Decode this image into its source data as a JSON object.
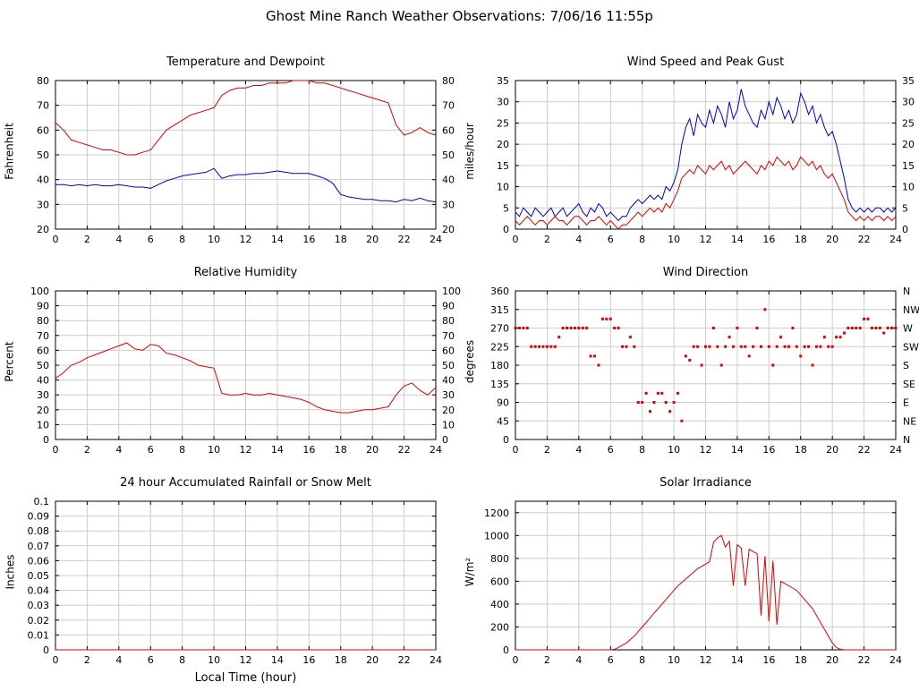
{
  "page_title": "Ghost Mine Ranch Weather Observations: 7/06/16 11:55p",
  "colors": {
    "red": "#dd0000",
    "blue": "#0000cc",
    "grid": "#cccccc",
    "axis": "#000000"
  },
  "chart_data": [
    {
      "type": "line",
      "title": "Temperature and Dewpoint",
      "ylabel": "Fahrenheit",
      "ylim": [
        20,
        80
      ],
      "ytick": 10,
      "right_ticks": true,
      "xlim": [
        0,
        24
      ],
      "xtick": 2,
      "series": [
        {
          "name": "Temperature",
          "color": "red",
          "type": "line",
          "x0": 0,
          "dx": 0.5,
          "y": [
            63,
            60,
            56,
            55,
            54,
            53,
            52,
            52,
            51,
            50,
            50,
            51,
            52,
            56,
            60,
            62,
            64,
            66,
            67,
            68,
            69,
            74,
            76,
            77,
            77,
            78,
            78,
            79,
            79,
            79,
            80,
            80,
            80,
            79,
            79,
            78,
            77,
            76,
            75,
            74,
            73,
            72,
            71,
            62,
            58,
            59,
            61,
            59,
            58
          ]
        },
        {
          "name": "Dewpoint",
          "color": "blue",
          "type": "line",
          "x0": 0,
          "dx": 0.5,
          "y": [
            38,
            38,
            37.5,
            38,
            37.5,
            38,
            37.5,
            37.5,
            38,
            37.5,
            37,
            37,
            36.5,
            38,
            39.5,
            40.5,
            41.5,
            42,
            42.5,
            43,
            44.5,
            40.5,
            41.5,
            42,
            42,
            42.5,
            42.5,
            43,
            43.5,
            43,
            42.5,
            42.5,
            42.5,
            41.5,
            40.5,
            38.5,
            34,
            33,
            32.5,
            32,
            32,
            31.5,
            31.5,
            31,
            32,
            31.5,
            32.5,
            31.5,
            31
          ]
        }
      ]
    },
    {
      "type": "line",
      "title": "Wind Speed and Peak Gust",
      "ylabel": "miles/hour",
      "ylim": [
        0,
        35
      ],
      "ytick": 5,
      "right_ticks": true,
      "xlim": [
        0,
        24
      ],
      "xtick": 2,
      "series": [
        {
          "name": "Peak Gust",
          "color": "blue",
          "type": "line",
          "x0": 0,
          "dx": 0.25,
          "y": [
            4,
            3,
            5,
            4,
            3,
            5,
            4,
            3,
            4,
            5,
            3,
            4,
            5,
            3,
            4,
            5,
            6,
            4,
            3,
            5,
            4,
            6,
            5,
            3,
            4,
            3,
            2,
            3,
            3,
            5,
            6,
            7,
            6,
            7,
            8,
            7,
            8,
            7,
            10,
            9,
            11,
            14,
            20,
            24,
            26,
            22,
            27,
            25,
            24,
            28,
            25,
            29,
            27,
            24,
            30,
            26,
            28,
            33,
            29,
            27,
            25,
            24,
            28,
            26,
            30,
            27,
            31,
            29,
            26,
            28,
            25,
            27,
            32,
            30,
            27,
            29,
            25,
            27,
            24,
            22,
            23,
            20,
            16,
            12,
            7,
            5,
            4,
            5,
            4,
            5,
            4,
            5,
            5,
            4,
            5,
            4,
            5
          ]
        },
        {
          "name": "Wind Speed",
          "color": "red",
          "type": "line",
          "x0": 0,
          "dx": 0.25,
          "y": [
            2,
            1,
            2,
            3,
            2,
            1,
            2,
            2,
            1,
            2,
            3,
            2,
            2,
            1,
            2,
            3,
            3,
            2,
            1,
            2,
            2,
            3,
            2,
            1,
            2,
            1,
            0,
            1,
            1,
            2,
            3,
            4,
            3,
            4,
            5,
            4,
            5,
            4,
            6,
            5,
            7,
            9,
            12,
            13,
            14,
            13,
            15,
            14,
            13,
            15,
            14,
            15,
            16,
            14,
            15,
            13,
            14,
            15,
            16,
            15,
            14,
            13,
            15,
            14,
            16,
            15,
            17,
            16,
            15,
            16,
            14,
            15,
            17,
            16,
            15,
            16,
            14,
            15,
            13,
            12,
            13,
            11,
            9,
            7,
            4,
            3,
            2,
            3,
            2,
            3,
            2,
            3,
            3,
            2,
            3,
            2,
            3
          ]
        }
      ]
    },
    {
      "type": "line",
      "title": "Relative Humidity",
      "ylabel": "Percent",
      "ylim": [
        0,
        100
      ],
      "ytick": 10,
      "right_ticks": true,
      "xlim": [
        0,
        24
      ],
      "xtick": 2,
      "series": [
        {
          "name": "Relative Humidity",
          "color": "red",
          "type": "line",
          "x0": 0,
          "dx": 0.5,
          "y": [
            41,
            45,
            50,
            52,
            55,
            57,
            59,
            61,
            63,
            65,
            61,
            60,
            64,
            63,
            58,
            57,
            55,
            53,
            50,
            49,
            48,
            31,
            30,
            30,
            31,
            30,
            30,
            31,
            30,
            29,
            28,
            27,
            25,
            22,
            20,
            19,
            18,
            18,
            19,
            20,
            20,
            21,
            22,
            30,
            36,
            38,
            33,
            30,
            35
          ]
        }
      ]
    },
    {
      "type": "scatter",
      "title": "Wind Direction",
      "ylabel": "degrees",
      "ylim": [
        0,
        360
      ],
      "ytick": 45,
      "right_ticks": false,
      "right_labels": [
        "N",
        "NE",
        "E",
        "SE",
        "S",
        "SW",
        "W",
        "NW",
        "N"
      ],
      "xlim": [
        0,
        24
      ],
      "xtick": 2,
      "series": [
        {
          "name": "Wind Direction",
          "color": "red",
          "type": "scatter",
          "x0": 0,
          "dx": 0.25,
          "y": [
            270,
            270,
            270,
            270,
            225,
            225,
            225,
            225,
            225,
            225,
            225,
            248,
            270,
            270,
            270,
            270,
            270,
            270,
            270,
            202,
            202,
            180,
            292,
            292,
            292,
            270,
            270,
            225,
            225,
            248,
            225,
            90,
            90,
            112,
            68,
            90,
            112,
            112,
            90,
            68,
            90,
            112,
            45,
            202,
            192,
            225,
            225,
            180,
            225,
            225,
            270,
            225,
            180,
            225,
            248,
            225,
            270,
            225,
            225,
            202,
            225,
            270,
            225,
            315,
            225,
            180,
            225,
            248,
            225,
            225,
            270,
            225,
            202,
            225,
            225,
            180,
            225,
            225,
            248,
            225,
            225,
            248,
            248,
            258,
            270,
            270,
            270,
            270,
            292,
            292,
            270,
            270,
            270,
            258,
            270,
            270,
            270
          ]
        }
      ]
    },
    {
      "type": "line",
      "title": "24 hour Accumulated Rainfall or Snow Melt",
      "ylabel": "Inches",
      "xlabel": "Local Time (hour)",
      "ylim": [
        0,
        0.1
      ],
      "ytick": 0.01,
      "right_ticks": false,
      "xlim": [
        0,
        24
      ],
      "xtick": 2,
      "series": [
        {
          "name": "Accumulated Rainfall",
          "color": "red",
          "type": "line",
          "x0": 0,
          "dx": 24,
          "y": [
            0,
            0
          ]
        }
      ]
    },
    {
      "type": "line",
      "title": "Solar Irradiance",
      "ylabel": "W/m²",
      "ylim": [
        0,
        1300
      ],
      "ytick": 200,
      "right_ticks": false,
      "xlim": [
        0,
        24
      ],
      "xtick": 2,
      "series": [
        {
          "name": "Solar Irradiance",
          "color": "red",
          "type": "line",
          "x0": 0,
          "dx": 0.25,
          "y": [
            0,
            0,
            0,
            0,
            0,
            0,
            0,
            0,
            0,
            0,
            0,
            0,
            0,
            0,
            0,
            0,
            0,
            0,
            0,
            0,
            0,
            0,
            0,
            0,
            0,
            5,
            20,
            40,
            60,
            90,
            120,
            160,
            200,
            240,
            280,
            320,
            360,
            400,
            440,
            480,
            520,
            560,
            590,
            620,
            650,
            680,
            710,
            730,
            750,
            770,
            940,
            980,
            1000,
            900,
            950,
            560,
            920,
            890,
            560,
            880,
            860,
            840,
            300,
            820,
            250,
            780,
            220,
            600,
            580,
            560,
            540,
            520,
            480,
            440,
            400,
            360,
            300,
            240,
            180,
            120,
            60,
            20,
            5,
            0,
            0,
            0,
            0,
            0,
            0,
            0,
            0,
            0,
            0,
            0,
            0,
            0,
            0
          ]
        }
      ]
    }
  ]
}
